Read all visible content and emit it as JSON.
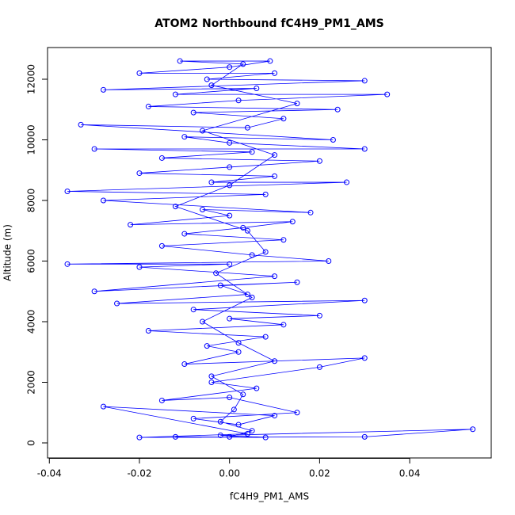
{
  "chart_data": {
    "type": "scatter-line",
    "title": "ATOM2 Northbound fC4H9_PM1_AMS",
    "x_label": "fC4H9_PM1_AMS",
    "y_label": "Altitude (m)",
    "x": [
      -0.012,
      0.008,
      -0.002,
      0.054,
      0.03,
      -0.02,
      0.004,
      -0.028,
      0.01,
      0.002,
      -0.008,
      0.015,
      0.0,
      -0.015,
      0.006,
      -0.004,
      0.02,
      0.03,
      -0.01,
      0.002,
      -0.005,
      0.008,
      -0.018,
      0.012,
      0.0,
      0.02,
      -0.008,
      0.03,
      -0.025,
      0.004,
      -0.002,
      0.015,
      -0.03,
      0.01,
      -0.02,
      0.0,
      -0.036,
      0.022,
      0.005,
      -0.015,
      0.012,
      -0.01,
      0.003,
      0.014,
      -0.022,
      0.0,
      -0.006,
      0.018,
      -0.028,
      0.008,
      -0.036,
      0.026,
      -0.004,
      0.01,
      -0.02,
      0.0,
      0.02,
      -0.015,
      0.005,
      -0.03,
      0.03,
      0.0,
      -0.01,
      0.023,
      -0.033,
      0.004,
      0.012,
      -0.008,
      0.024,
      -0.018,
      0.002,
      0.035,
      -0.012,
      0.006,
      -0.028,
      0.03,
      -0.005,
      0.01,
      -0.02,
      0.0,
      0.009,
      -0.011,
      0.003,
      -0.004,
      0.015,
      -0.006,
      0.01,
      0.0,
      -0.012,
      0.004,
      0.008,
      -0.003,
      0.005,
      -0.006,
      0.002,
      0.01,
      -0.004,
      0.003,
      0.001,
      -0.002,
      0.005,
      0.0
    ],
    "series": [
      {
        "color": "#0000ff",
        "values": [
          200,
          180,
          250,
          450,
          200,
          180,
          300,
          1200,
          900,
          600,
          800,
          1000,
          1500,
          1400,
          1800,
          2000,
          2500,
          2800,
          2600,
          3000,
          3200,
          3500,
          3700,
          3900,
          4100,
          4200,
          4400,
          4700,
          4600,
          4900,
          5200,
          5300,
          5000,
          5500,
          5800,
          5900,
          5900,
          6000,
          6200,
          6500,
          6700,
          6900,
          7100,
          7300,
          7200,
          7500,
          7700,
          7600,
          8000,
          8200,
          8300,
          8600,
          8600,
          8800,
          8900,
          9100,
          9300,
          9400,
          9600,
          9700,
          9700,
          9900,
          10100,
          10000,
          10500,
          10400,
          10700,
          10900,
          11000,
          11100,
          11300,
          11500,
          11500,
          11700,
          11650,
          11950,
          12000,
          12200,
          12200,
          12400,
          12600,
          12600,
          12500,
          11800,
          11200,
          10300,
          9500,
          8500,
          7800,
          7000,
          6300,
          5600,
          4800,
          4000,
          3300,
          2700,
          2200,
          1600,
          1100,
          700,
          400,
          200
        ]
      }
    ],
    "xlim": [
      -0.0404,
      0.0581
    ],
    "ylim": [
      -497,
      13046
    ],
    "xticks": [
      -0.04,
      -0.02,
      {
        "value": 0,
        "label": "0.00"
      },
      0.02,
      0.04
    ],
    "yticks": [
      0,
      2000,
      4000,
      6000,
      8000,
      10000,
      12000
    ]
  }
}
